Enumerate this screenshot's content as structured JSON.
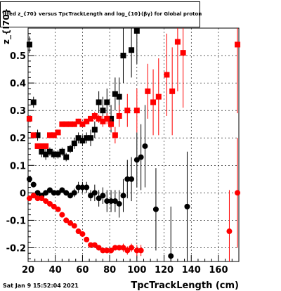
{
  "chart_data": {
    "type": "scatter",
    "title": "itted  z_{70}  versus TpcTrackLength and log_{10}(βγ) for Global proton",
    "xlabel": "TpcTrackLength (cm)",
    "ylabel": "z_{I70}",
    "timestamp": "Sat Jan  9 15:52:04 2021",
    "xlim": [
      20,
      175
    ],
    "ylim": [
      -0.25,
      0.6
    ],
    "grid": true,
    "x_ticks": [
      20,
      40,
      60,
      80,
      100,
      120,
      140,
      160
    ],
    "y_ticks": [
      -0.2,
      -0.1,
      0,
      0.1,
      0.2,
      0.3,
      0.4,
      0.5
    ],
    "series": [
      {
        "color": "#000000",
        "marker": "square",
        "points": [
          [
            21,
            0.54,
            0.03
          ],
          [
            24,
            0.33,
            0.02
          ],
          [
            27,
            0.21,
            0.02
          ],
          [
            30,
            0.15,
            0.02
          ],
          [
            33,
            0.14,
            0.02
          ],
          [
            36,
            0.15,
            0.015
          ],
          [
            39,
            0.14,
            0.015
          ],
          [
            42,
            0.14,
            0.015
          ],
          [
            45,
            0.15,
            0.015
          ],
          [
            48,
            0.13,
            0.015
          ],
          [
            51,
            0.16,
            0.015
          ],
          [
            54,
            0.18,
            0.02
          ],
          [
            57,
            0.2,
            0.02
          ],
          [
            60,
            0.19,
            0.02
          ],
          [
            63,
            0.2,
            0.02
          ],
          [
            66,
            0.2,
            0.03
          ],
          [
            69,
            0.23,
            0.03
          ],
          [
            72,
            0.33,
            0.04
          ],
          [
            75,
            0.3,
            0.05
          ],
          [
            78,
            0.33,
            0.05
          ],
          [
            81,
            0.27,
            0.05
          ],
          [
            84,
            0.36,
            0.06
          ],
          [
            87,
            0.35,
            0.07
          ],
          [
            90,
            0.5,
            0.1
          ],
          [
            96,
            0.52,
            0.1
          ],
          [
            100,
            0.59,
            0.12
          ]
        ]
      },
      {
        "color": "#000000",
        "marker": "circle",
        "points": [
          [
            21,
            0.05,
            0.01
          ],
          [
            24,
            0.03,
            0.01
          ],
          [
            27,
            0.0,
            0.01
          ],
          [
            30,
            -0.01,
            0.01
          ],
          [
            33,
            0.0,
            0.01
          ],
          [
            36,
            0.01,
            0.01
          ],
          [
            39,
            0.0,
            0.01
          ],
          [
            42,
            0.0,
            0.01
          ],
          [
            45,
            0.01,
            0.01
          ],
          [
            48,
            0.0,
            0.01
          ],
          [
            51,
            -0.01,
            0.01
          ],
          [
            54,
            0.0,
            0.015
          ],
          [
            57,
            0.02,
            0.02
          ],
          [
            60,
            0.02,
            0.02
          ],
          [
            63,
            0.02,
            0.02
          ],
          [
            66,
            -0.01,
            0.02
          ],
          [
            69,
            0.0,
            0.03
          ],
          [
            72,
            -0.02,
            0.03
          ],
          [
            75,
            -0.01,
            0.03
          ],
          [
            78,
            -0.03,
            0.04
          ],
          [
            81,
            -0.03,
            0.04
          ],
          [
            84,
            -0.03,
            0.04
          ],
          [
            87,
            -0.04,
            0.05
          ],
          [
            90,
            -0.01,
            0.06
          ],
          [
            93,
            0.05,
            0.07
          ],
          [
            96,
            0.05,
            0.08
          ],
          [
            100,
            0.12,
            0.1
          ],
          [
            103,
            0.13,
            0.12
          ],
          [
            106,
            0.17,
            0.15
          ],
          [
            114,
            -0.06,
            0.15
          ],
          [
            125,
            -0.23,
            0.18
          ],
          [
            137,
            -0.05,
            0.2
          ]
        ]
      },
      {
        "color": "#ff0000",
        "marker": "square",
        "points": [
          [
            21,
            0.27,
            0.01
          ],
          [
            24,
            0.21,
            0.01
          ],
          [
            27,
            0.17,
            0.01
          ],
          [
            30,
            0.17,
            0.01
          ],
          [
            33,
            0.17,
            0.01
          ],
          [
            36,
            0.21,
            0.01
          ],
          [
            39,
            0.21,
            0.01
          ],
          [
            42,
            0.22,
            0.01
          ],
          [
            45,
            0.25,
            0.01
          ],
          [
            48,
            0.25,
            0.01
          ],
          [
            51,
            0.25,
            0.01
          ],
          [
            54,
            0.25,
            0.01
          ],
          [
            57,
            0.26,
            0.01
          ],
          [
            60,
            0.25,
            0.01
          ],
          [
            63,
            0.26,
            0.01
          ],
          [
            66,
            0.27,
            0.01
          ],
          [
            69,
            0.28,
            0.015
          ],
          [
            72,
            0.27,
            0.015
          ],
          [
            75,
            0.26,
            0.02
          ],
          [
            78,
            0.27,
            0.02
          ],
          [
            81,
            0.25,
            0.02
          ],
          [
            84,
            0.21,
            0.03
          ],
          [
            87,
            0.28,
            0.04
          ],
          [
            93,
            0.3,
            0.06
          ],
          [
            100,
            0.3,
            0.08
          ],
          [
            108,
            0.37,
            0.1
          ],
          [
            112,
            0.33,
            0.12
          ],
          [
            116,
            0.35,
            0.14
          ],
          [
            122,
            0.43,
            0.15
          ],
          [
            126,
            0.37,
            0.16
          ],
          [
            130,
            0.55,
            0.18
          ],
          [
            134,
            0.51,
            0.2
          ],
          [
            174,
            0.54,
            0.25
          ]
        ]
      },
      {
        "color": "#ff0000",
        "marker": "circle",
        "points": [
          [
            21,
            -0.02,
            0.005
          ],
          [
            24,
            -0.01,
            0.005
          ],
          [
            27,
            -0.02,
            0.005
          ],
          [
            30,
            -0.02,
            0.005
          ],
          [
            33,
            -0.03,
            0.005
          ],
          [
            36,
            -0.04,
            0.005
          ],
          [
            39,
            -0.05,
            0.005
          ],
          [
            42,
            -0.06,
            0.005
          ],
          [
            45,
            -0.08,
            0.005
          ],
          [
            48,
            -0.1,
            0.005
          ],
          [
            51,
            -0.11,
            0.005
          ],
          [
            54,
            -0.12,
            0.005
          ],
          [
            57,
            -0.14,
            0.005
          ],
          [
            60,
            -0.15,
            0.005
          ],
          [
            63,
            -0.17,
            0.005
          ],
          [
            66,
            -0.19,
            0.006
          ],
          [
            69,
            -0.19,
            0.006
          ],
          [
            72,
            -0.2,
            0.007
          ],
          [
            75,
            -0.21,
            0.008
          ],
          [
            78,
            -0.21,
            0.01
          ],
          [
            81,
            -0.21,
            0.01
          ],
          [
            84,
            -0.2,
            0.01
          ],
          [
            87,
            -0.2,
            0.01
          ],
          [
            90,
            -0.2,
            0.015
          ],
          [
            93,
            -0.21,
            0.015
          ],
          [
            96,
            -0.2,
            0.015
          ],
          [
            100,
            -0.21,
            0.02
          ],
          [
            103,
            -0.21,
            0.02
          ],
          [
            168,
            -0.14,
            0.15
          ],
          [
            174,
            0.0,
            0.2
          ]
        ]
      }
    ]
  }
}
